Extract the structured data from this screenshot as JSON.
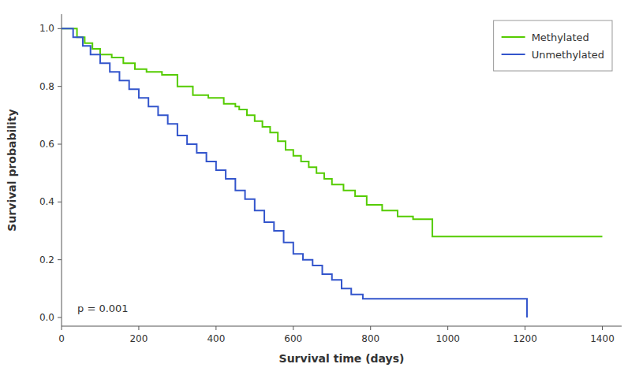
{
  "chart_data": {
    "type": "step",
    "x_label": "Survival time (days)",
    "y_label": "Survival probability",
    "series": [
      {
        "name": "Methylated",
        "color": "#55cc00",
        "x": [
          0,
          40,
          60,
          80,
          100,
          130,
          160,
          190,
          220,
          260,
          300,
          340,
          380,
          420,
          450,
          460,
          480,
          500,
          520,
          540,
          560,
          580,
          600,
          620,
          640,
          660,
          680,
          700,
          730,
          760,
          790,
          830,
          870,
          910,
          960,
          1000,
          1400
        ],
        "values": [
          1.0,
          0.97,
          0.95,
          0.93,
          0.91,
          0.9,
          0.88,
          0.86,
          0.85,
          0.84,
          0.8,
          0.77,
          0.76,
          0.74,
          0.73,
          0.72,
          0.7,
          0.68,
          0.66,
          0.64,
          0.61,
          0.58,
          0.56,
          0.54,
          0.52,
          0.5,
          0.48,
          0.46,
          0.44,
          0.42,
          0.39,
          0.37,
          0.35,
          0.34,
          0.28,
          0.28,
          0.28
        ]
      },
      {
        "name": "Unmethylated",
        "color": "#3355cc",
        "x": [
          0,
          30,
          55,
          75,
          100,
          125,
          150,
          175,
          200,
          225,
          250,
          275,
          300,
          325,
          350,
          375,
          400,
          425,
          450,
          475,
          500,
          525,
          550,
          575,
          600,
          625,
          650,
          675,
          700,
          725,
          750,
          780,
          820,
          860,
          900,
          1200,
          1205
        ],
        "values": [
          1.0,
          0.97,
          0.94,
          0.91,
          0.88,
          0.85,
          0.82,
          0.79,
          0.76,
          0.73,
          0.7,
          0.67,
          0.63,
          0.6,
          0.57,
          0.54,
          0.51,
          0.48,
          0.44,
          0.41,
          0.37,
          0.33,
          0.3,
          0.26,
          0.22,
          0.2,
          0.18,
          0.15,
          0.13,
          0.1,
          0.08,
          0.065,
          0.065,
          0.065,
          0.065,
          0.065,
          0.0
        ]
      }
    ],
    "xlim": [
      0,
      1450
    ],
    "ylim": [
      -0.03,
      1.05
    ],
    "xticks": [
      0,
      200,
      400,
      600,
      800,
      1000,
      1200,
      1400
    ],
    "yticks": [
      {
        "value": 0,
        "label": "0.0"
      },
      0.2,
      0.4,
      0.6,
      0.8,
      {
        "value": 1,
        "label": "1.0"
      }
    ],
    "annotations": [
      {
        "text": "p = 0.001"
      }
    ],
    "legend": "upper right",
    "grid": false
  }
}
